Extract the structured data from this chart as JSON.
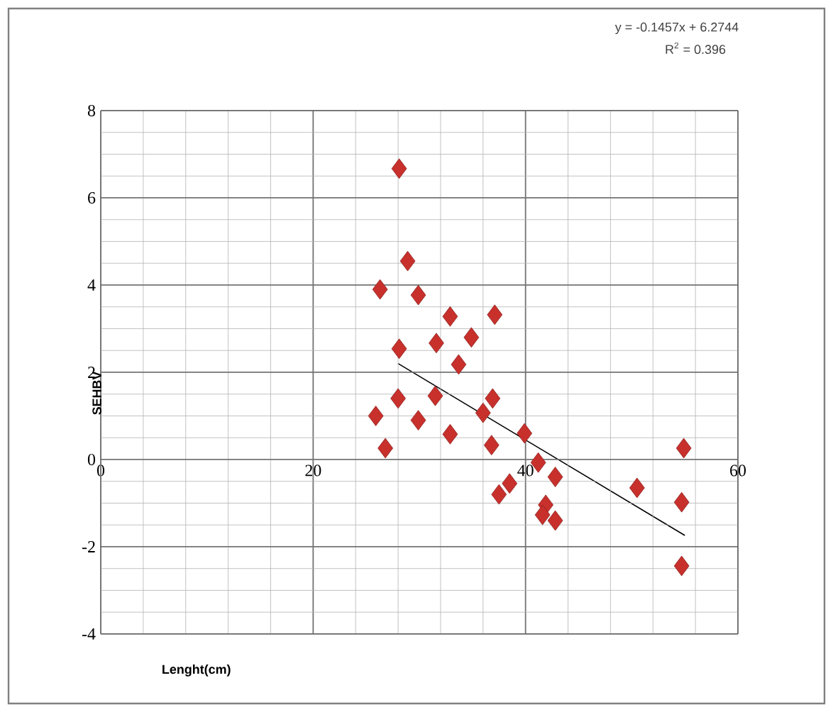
{
  "chart_data": {
    "type": "scatter",
    "xlabel": "Lenght(cm)",
    "ylabel": "SEHBV",
    "annotations": [
      "y = -0.1457x + 6.2744",
      "R$^{2}$ = 0.396"
    ],
    "series": [
      {
        "color": "#c8302c",
        "marker": "diamond",
        "x": [
          28.1,
          28.9,
          26.3,
          29.9,
          32.9,
          37.1,
          34.9,
          28.1,
          31.6,
          33.7,
          28.0,
          25.9,
          29.9,
          31.5,
          36.9,
          32.9,
          36.0,
          26.8,
          36.8,
          39.9,
          41.2,
          42.8,
          37.5,
          38.5,
          41.9,
          42.8,
          50.5,
          54.9,
          54.7,
          54.7,
          41.6
        ],
        "values": [
          6.67,
          4.55,
          3.9,
          3.77,
          3.28,
          3.32,
          2.8,
          2.54,
          2.67,
          2.18,
          1.4,
          1.0,
          0.9,
          1.46,
          1.4,
          0.58,
          1.07,
          0.26,
          0.33,
          0.6,
          -0.07,
          -0.4,
          -0.8,
          -0.55,
          -1.04,
          -1.4,
          -0.65,
          0.26,
          -0.98,
          -2.44,
          -1.27
        ]
      },
      {
        "type": "line",
        "color": "#000000",
        "marker": "none",
        "x": [
          28,
          55
        ],
        "values": [
          2.2,
          -1.74
        ]
      }
    ],
    "xlim": [
      0,
      60
    ],
    "xticks": [
      0,
      20,
      40,
      60
    ],
    "ylim": [
      -4,
      8
    ],
    "yticks": [
      -4,
      -2,
      0,
      2,
      4,
      6,
      8
    ],
    "grid": true
  }
}
